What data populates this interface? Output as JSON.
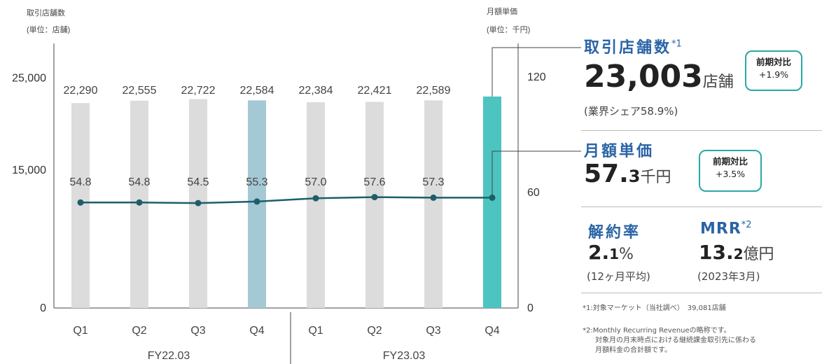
{
  "chart_data": {
    "type": "bar+line",
    "categories": [
      "Q1",
      "Q2",
      "Q3",
      "Q4",
      "Q1",
      "Q2",
      "Q3",
      "Q4"
    ],
    "fiscal_years": [
      "FY22.03",
      "FY23.03"
    ],
    "bar_series": {
      "values": [
        22290,
        22555,
        22722,
        22584,
        22384,
        22421,
        22589,
        23003
      ],
      "labels": [
        "22,290",
        "22,555",
        "22,722",
        "22,584",
        "22,384",
        "22,421",
        "22,589",
        ""
      ]
    },
    "line_series": {
      "values": [
        54.8,
        54.8,
        54.5,
        55.3,
        57.0,
        57.6,
        57.3,
        57.3
      ],
      "labels": [
        "54.8",
        "54.8",
        "54.5",
        "55.3",
        "57.0",
        "57.6",
        "57.3",
        ""
      ]
    },
    "left_axis": {
      "title_line1": "取引店舗数",
      "title_line2": "(単位：店舗)",
      "ticks": [
        0,
        15000,
        25000
      ],
      "tick_labels": [
        "0",
        "15,000",
        "25,000"
      ]
    },
    "right_axis": {
      "title_line1": "月額単価",
      "title_line2": "(単位：千円)",
      "ticks": [
        0,
        60,
        120
      ],
      "tick_labels": [
        "0",
        "60",
        "120"
      ]
    },
    "colors": {
      "bar": "#dcdcdc",
      "bar_fy22_q4": "#a5c8d5",
      "bar_latest": "#4dc4bf",
      "line": "#1d5e6b",
      "axis": "#444444"
    }
  },
  "kpis": {
    "stores": {
      "label": "取引店舗数",
      "note_mark": "*1",
      "value": "23,003",
      "unit": "店舗",
      "sub": "(業界シェア58.9%)",
      "badge_title": "前期対比",
      "badge_value": "+1.9%"
    },
    "price": {
      "label": "月額単価",
      "value_int": "57.",
      "value_dec": "3",
      "unit": "千円",
      "badge_title": "前期対比",
      "badge_value": "+3.5%"
    },
    "churn": {
      "label": "解約率",
      "value_int": "2.",
      "value_dec": "1",
      "unit": "%",
      "sub": "(12ヶ月平均)"
    },
    "mrr": {
      "label": "MRR",
      "note_mark": "*2",
      "value_int": "13.",
      "value_dec": "2",
      "unit": "億円",
      "sub": "(2023年3月)"
    }
  },
  "footnotes": {
    "n1": "*1:対象マーケット（当社調べ）　39,081店舗",
    "n2_line1": "*2:Monthly Recurring Revenueの略称です。",
    "n2_line2": "対象月の月末時点における継続課金取引先に係わる",
    "n2_line3": "月額料金の合計額です。"
  }
}
